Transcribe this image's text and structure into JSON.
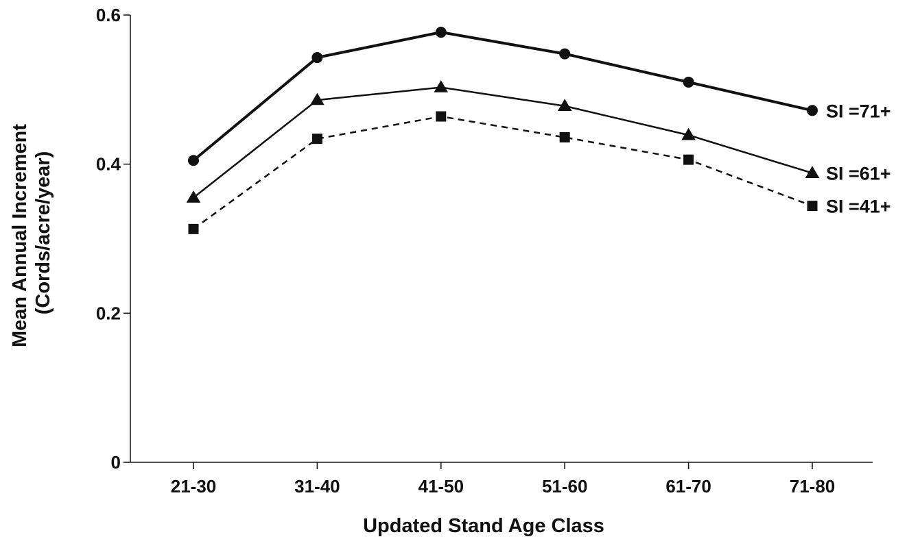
{
  "chart_data": {
    "type": "line",
    "title": "",
    "xlabel": "Updated Stand Age Class",
    "ylabel_lines": [
      "Mean Annual Increment",
      "(Cords/acre/year)"
    ],
    "categories": [
      "21-30",
      "31-40",
      "41-50",
      "51-60",
      "61-70",
      "71-80"
    ],
    "ylim": [
      0,
      0.6
    ],
    "yticks": [
      0,
      0.2,
      0.4,
      0.6
    ],
    "ytick_labels": [
      "0",
      "0.2",
      "0.4",
      "0.6"
    ],
    "grid": false,
    "legend": "inline labels at right end of each line",
    "series": [
      {
        "name": "SI =71+",
        "values": [
          0.405,
          0.543,
          0.577,
          0.548,
          0.51,
          0.472
        ],
        "marker": "circle",
        "line_style": "solid-thick"
      },
      {
        "name": "SI =61+",
        "values": [
          0.355,
          0.486,
          0.503,
          0.478,
          0.439,
          0.388
        ],
        "marker": "triangle",
        "line_style": "solid"
      },
      {
        "name": "SI =41+",
        "values": [
          0.313,
          0.434,
          0.464,
          0.436,
          0.406,
          0.344
        ],
        "marker": "square",
        "line_style": "dashed"
      }
    ]
  }
}
